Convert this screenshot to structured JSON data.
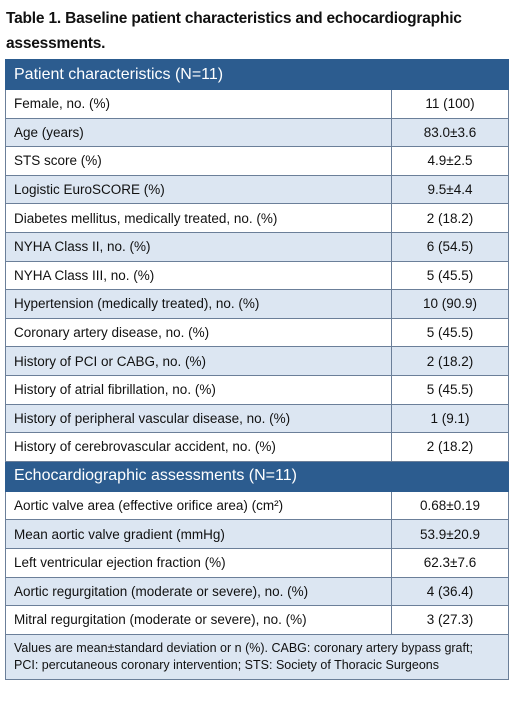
{
  "title": "Table 1. Baseline patient characteristics and echocardiographic assessments.",
  "sections": [
    {
      "header": "Patient characteristics (N=11)",
      "rows": [
        [
          "Female, no. (%)",
          "11 (100)"
        ],
        [
          "Age (years)",
          "83.0±3.6"
        ],
        [
          "STS score (%)",
          "4.9±2.5"
        ],
        [
          "Logistic EuroSCORE (%)",
          "9.5±4.4"
        ],
        [
          "Diabetes mellitus, medically treated, no. (%)",
          "2 (18.2)"
        ],
        [
          "NYHA Class II, no. (%)",
          "6 (54.5)"
        ],
        [
          "NYHA Class III, no. (%)",
          "5 (45.5)"
        ],
        [
          "Hypertension (medically treated), no. (%)",
          "10 (90.9)"
        ],
        [
          "Coronary artery disease, no. (%)",
          "5 (45.5)"
        ],
        [
          "History of PCI or CABG, no. (%)",
          "2 (18.2)"
        ],
        [
          "History of atrial fibrillation, no. (%)",
          "5 (45.5)"
        ],
        [
          "History of peripheral vascular disease, no. (%)",
          "1 (9.1)"
        ],
        [
          "History of cerebrovascular accident, no. (%)",
          "2 (18.2)"
        ]
      ]
    },
    {
      "header": "Echocardiographic assessments (N=11)",
      "rows": [
        [
          "Aortic valve area (effective orifice area) (cm²)",
          "0.68±0.19"
        ],
        [
          "Mean aortic valve gradient (mmHg)",
          "53.9±20.9"
        ],
        [
          "Left ventricular ejection fraction (%)",
          "62.3±7.6"
        ],
        [
          "Aortic regurgitation (moderate or severe), no. (%)",
          "4 (36.4)"
        ],
        [
          "Mitral regurgitation (moderate or severe), no. (%)",
          "3 (27.3)"
        ]
      ]
    }
  ],
  "footnote": "Values are mean±standard deviation or n (%). CABG: coronary artery bypass graft; PCI: percutaneous coronary intervention; STS: Society of Thoracic Surgeons"
}
